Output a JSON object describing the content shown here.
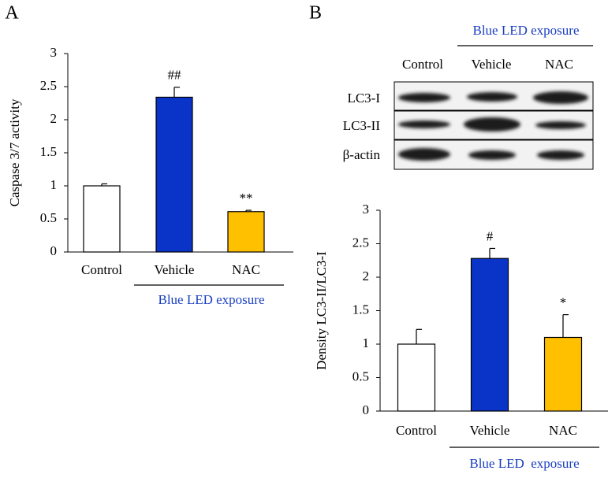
{
  "chart_data": [
    {
      "type": "bar",
      "panel_label": "A",
      "y_label": "Caspase 3/7 activity",
      "categories": [
        "Control",
        "Vehicle",
        "NAC"
      ],
      "values": [
        1.0,
        2.34,
        0.61
      ],
      "errors": [
        0.03,
        0.15,
        0.02
      ],
      "colors": [
        "#ffffff",
        "#0a34c8",
        "#ffc000"
      ],
      "annotations": [
        null,
        "##",
        "**"
      ],
      "group_label": "Blue LED exposure",
      "ylim": [
        0,
        3
      ],
      "yticks": [
        0,
        0.5,
        1,
        1.5,
        2,
        2.5,
        3
      ]
    },
    {
      "type": "bar",
      "panel_label": "B",
      "y_label": "Density LC3-II/LC3-I",
      "categories": [
        "Control",
        "Vehicle",
        "NAC"
      ],
      "values": [
        1.0,
        2.28,
        1.1
      ],
      "errors": [
        0.22,
        0.15,
        0.34
      ],
      "colors": [
        "#ffffff",
        "#0a34c8",
        "#ffc000"
      ],
      "annotations": [
        null,
        "#",
        "*"
      ],
      "group_label": "Blue LED  exposure",
      "ylim": [
        0,
        3
      ],
      "yticks": [
        0,
        0.5,
        1,
        1.5,
        2,
        2.5,
        3
      ]
    }
  ],
  "blot": {
    "group_label": "Blue LED exposure",
    "columns": [
      "Control",
      "Vehicle",
      "NAC"
    ],
    "rows": [
      "LC3-I",
      "LC3-II",
      "β-actin"
    ]
  }
}
